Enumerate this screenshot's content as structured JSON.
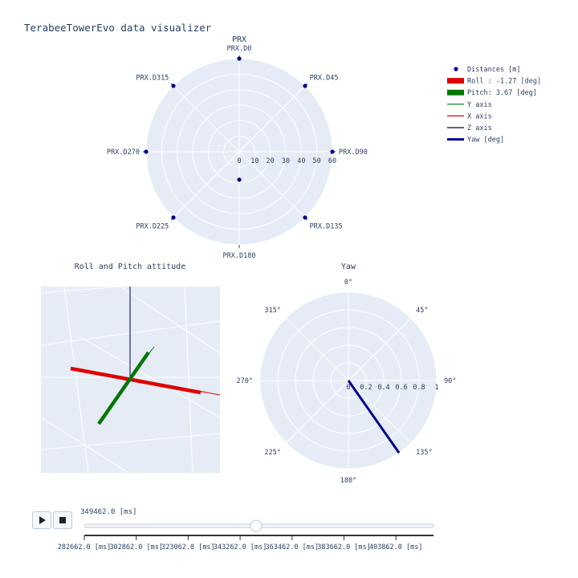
{
  "page_title": "TerabeeTowerEvo data visualizer",
  "chart_data": [
    {
      "type": "scatter-polar",
      "title": "PRX",
      "angular_direction": "clockwise",
      "rotation": "north",
      "angular_categories": [
        "PRX.D0",
        "PRX.D45",
        "PRX.D90",
        "PRX.D135",
        "PRX.D180",
        "PRX.D225",
        "PRX.D270",
        "PRX.D315"
      ],
      "radial_range": [
        0,
        60
      ],
      "radial_ticks": [
        "0",
        "10",
        "20",
        "30",
        "40",
        "50",
        "60"
      ],
      "series": [
        {
          "name": "Distances [m]",
          "color": "#00008b",
          "points": [
            {
              "theta": "PRX.D0",
              "r": 60
            },
            {
              "theta": "PRX.D45",
              "r": 60
            },
            {
              "theta": "PRX.D90",
              "r": 60
            },
            {
              "theta": "PRX.D135",
              "r": 60
            },
            {
              "theta": "PRX.D180",
              "r": 18
            },
            {
              "theta": "PRX.D225",
              "r": 60
            },
            {
              "theta": "PRX.D270",
              "r": 60
            },
            {
              "theta": "PRX.D315",
              "r": 60
            }
          ]
        }
      ]
    },
    {
      "type": "3d-attitude",
      "title": "Roll and Pitch attitude",
      "series": [
        {
          "name": "Roll :  -1.27 [deg]",
          "color": "#dd0000",
          "value": -1.27
        },
        {
          "name": "Pitch:   3.67 [deg]",
          "color": "#007700",
          "value": 3.67
        },
        {
          "name": "Y axis",
          "color": "#007700"
        },
        {
          "name": "X axis",
          "color": "#dd0000"
        },
        {
          "name": "Z axis",
          "color": "#00004d"
        }
      ]
    },
    {
      "type": "line-polar",
      "title": "Yaw",
      "angular_direction": "clockwise",
      "rotation": "north",
      "angular_ticks": [
        "0°",
        "45°",
        "90°",
        "135°",
        "180°",
        "225°",
        "270°",
        "315°"
      ],
      "radial_range": [
        0,
        1
      ],
      "radial_ticks": [
        "0",
        "0.2",
        "0.4",
        "0.6",
        "0.8",
        "1"
      ],
      "series": [
        {
          "name": "Yaw [deg]",
          "color": "#00008b",
          "theta": 145,
          "r": 1
        }
      ]
    }
  ],
  "legend": {
    "placement": "top-right",
    "items": [
      {
        "label": "Distances [m]",
        "color": "#00008b",
        "symbol": "dot"
      },
      {
        "label": "Roll :  -1.27 [deg]",
        "color": "#dd0000",
        "symbol": "thick"
      },
      {
        "label": "Pitch:   3.67 [deg]",
        "color": "#007700",
        "symbol": "thick"
      },
      {
        "label": "Y axis",
        "color": "#007700",
        "symbol": "thin"
      },
      {
        "label": "X axis",
        "color": "#dd0000",
        "symbol": "thin"
      },
      {
        "label": "Z axis",
        "color": "#00004d",
        "symbol": "thin"
      },
      {
        "label": "Yaw [deg]",
        "color": "#00008b",
        "symbol": "medium"
      }
    ]
  },
  "controls": {
    "play_icon": "play-icon",
    "stop_icon": "stop-icon"
  },
  "slider": {
    "current_label": "349462.0 [ms]",
    "current_value": 349462.0,
    "range": [
      282662.0,
      418462.0
    ],
    "tick_values": [
      282662.0,
      302862.0,
      323062.0,
      343262.0,
      363462.0,
      383662.0,
      403862.0
    ],
    "tick_labels": [
      "282662.0 [ms]",
      "302862.0 [ms]",
      "323062.0 [ms]",
      "343262.0 [ms]",
      "363462.0 [ms]",
      "383662.0 [ms]",
      "403862.0 [ms]"
    ]
  }
}
